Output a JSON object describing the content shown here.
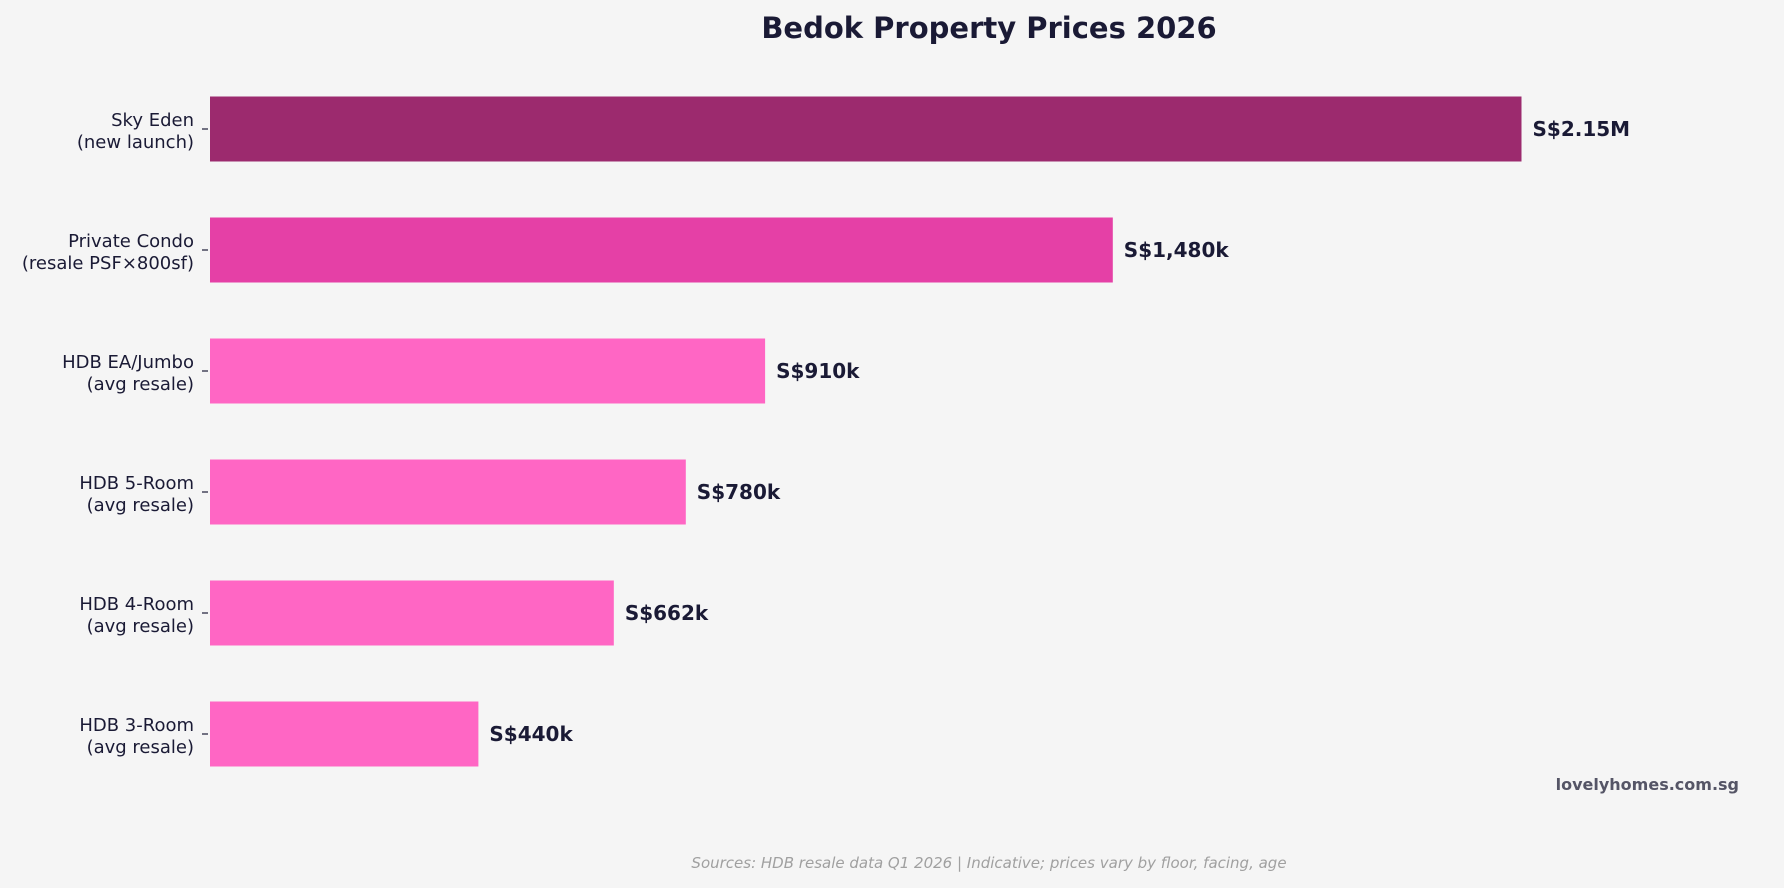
{
  "chart_data": {
    "type": "bar",
    "orientation": "horizontal",
    "title": "Bedok Property Prices 2026",
    "xlabel": "",
    "ylabel": "",
    "categories": [
      [
        "Sky Eden",
        "(new launch)"
      ],
      [
        "Private Condo",
        "(resale PSF×800sf)"
      ],
      [
        "HDB EA/Jumbo",
        "(avg resale)"
      ],
      [
        "HDB 5-Room",
        "(avg resale)"
      ],
      [
        "HDB 4-Room",
        "(avg resale)"
      ],
      [
        "HDB 3-Room",
        "(avg resale)"
      ]
    ],
    "values": [
      2150,
      1480,
      910,
      780,
      662,
      440
    ],
    "value_unit": "S$ thousands",
    "data_labels": [
      "S$2.15M",
      "S$1,480k",
      "S$910k",
      "S$780k",
      "S$662k",
      "S$440k"
    ],
    "colors": [
      "#9c2a6e",
      "#e540a6",
      "#ff66c4",
      "#ff66c4",
      "#ff66c4",
      "#ff66c4"
    ],
    "xlim": [
      0,
      2500
    ],
    "grid": false,
    "x_axis_visible": false
  },
  "watermark": "lovelyhomes.com.sg",
  "source_note": "Sources: HDB resale data Q1 2026 | Indicative; prices vary by floor, facing, age"
}
